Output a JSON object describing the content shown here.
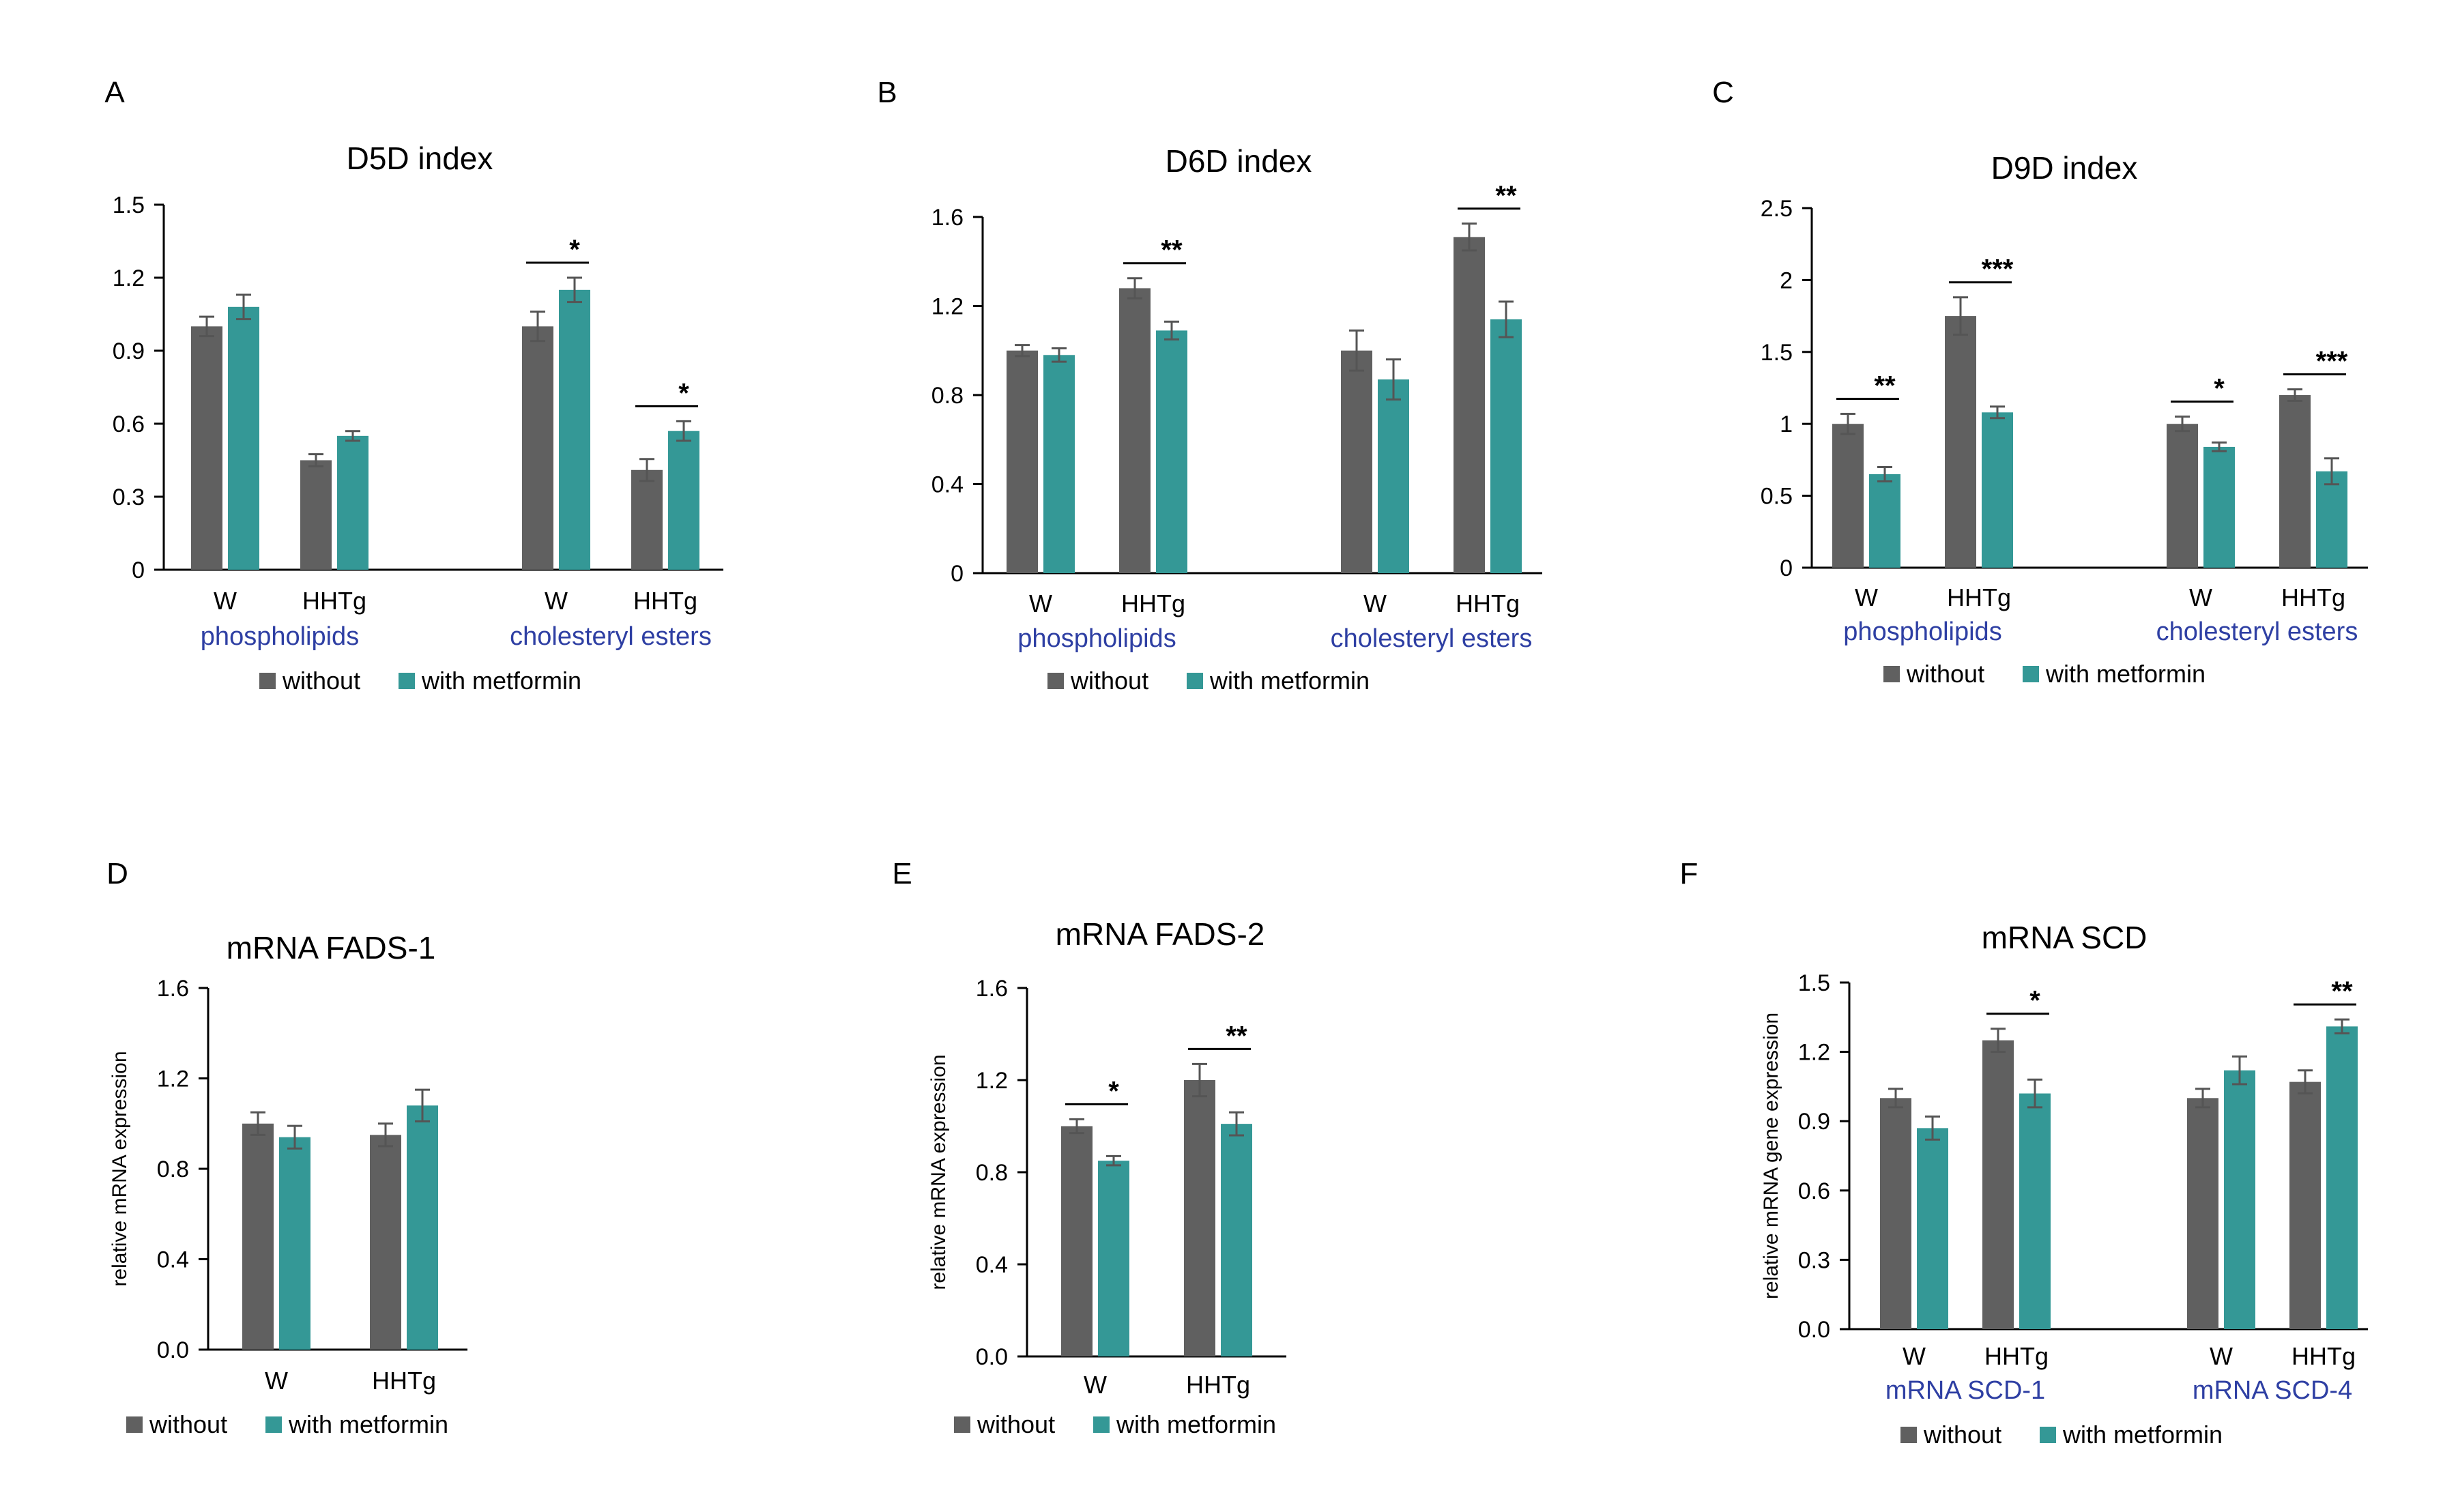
{
  "colors": {
    "without": "#606060",
    "with": "#349896",
    "axis": "#000000",
    "group_label": "#2e3fa3",
    "error": "#555555"
  },
  "legend": {
    "without": "without",
    "with": "with metformin"
  },
  "chart_data": [
    {
      "panel": "A",
      "type": "bar",
      "title": "D5D index",
      "ylabel": "",
      "yticks": [
        "0",
        "0.3",
        "0.6",
        "0.9",
        "1.2",
        "1.5"
      ],
      "ylim": [
        0,
        1.5
      ],
      "categories": [
        "W",
        "HHTg",
        "W",
        "HHTg"
      ],
      "groups": [
        {
          "label": "phospholipids",
          "span": [
            0,
            1
          ]
        },
        {
          "label": "cholesteryl esters",
          "span": [
            2,
            3
          ]
        }
      ],
      "series": [
        {
          "name": "without",
          "values": [
            1.0,
            0.45,
            1.0,
            0.41
          ],
          "errors": [
            0.04,
            0.025,
            0.06,
            0.045
          ]
        },
        {
          "name": "with metformin",
          "values": [
            1.08,
            0.55,
            1.15,
            0.57
          ],
          "errors": [
            0.05,
            0.02,
            0.05,
            0.04
          ]
        }
      ],
      "significance": [
        {
          "category": 2,
          "label": "*"
        },
        {
          "category": 3,
          "label": "*"
        }
      ]
    },
    {
      "panel": "B",
      "type": "bar",
      "title": "D6D index",
      "ylabel": "",
      "yticks": [
        "0",
        "0.4",
        "0.8",
        "1.2",
        "1.6"
      ],
      "ylim": [
        0,
        1.6
      ],
      "categories": [
        "W",
        "HHTg",
        "W",
        "HHTg"
      ],
      "groups": [
        {
          "label": "phospholipids",
          "span": [
            0,
            1
          ]
        },
        {
          "label": "cholesteryl esters",
          "span": [
            2,
            3
          ]
        }
      ],
      "series": [
        {
          "name": "without",
          "values": [
            1.0,
            1.28,
            1.0,
            1.51
          ],
          "errors": [
            0.025,
            0.045,
            0.09,
            0.06
          ]
        },
        {
          "name": "with metformin",
          "values": [
            0.98,
            1.09,
            0.87,
            1.14
          ],
          "errors": [
            0.03,
            0.04,
            0.09,
            0.08
          ]
        }
      ],
      "significance": [
        {
          "category": 1,
          "label": "**"
        },
        {
          "category": 3,
          "label": "**"
        }
      ]
    },
    {
      "panel": "C",
      "type": "bar",
      "title": "D9D index",
      "ylabel": "",
      "yticks": [
        "0",
        "0.5",
        "1",
        "1.5",
        "2",
        "2.5"
      ],
      "ylim": [
        0,
        2.5
      ],
      "categories": [
        "W",
        "HHTg",
        "W",
        "HHTg"
      ],
      "groups": [
        {
          "label": "phospholipids",
          "span": [
            0,
            1
          ]
        },
        {
          "label": "cholesteryl esters",
          "span": [
            2,
            3
          ]
        }
      ],
      "series": [
        {
          "name": "without",
          "values": [
            1.0,
            1.75,
            1.0,
            1.2
          ],
          "errors": [
            0.07,
            0.13,
            0.05,
            0.04
          ]
        },
        {
          "name": "with metformin",
          "values": [
            0.65,
            1.08,
            0.84,
            0.67
          ],
          "errors": [
            0.05,
            0.04,
            0.03,
            0.09
          ]
        }
      ],
      "significance": [
        {
          "category": 0,
          "label": "**"
        },
        {
          "category": 1,
          "label": "***"
        },
        {
          "category": 2,
          "label": "*"
        },
        {
          "category": 3,
          "label": "***"
        }
      ]
    },
    {
      "panel": "D",
      "type": "bar",
      "title": "mRNA FADS-1",
      "ylabel": "relative mRNA expression",
      "yticks": [
        "0.0",
        "0.4",
        "0.8",
        "1.2",
        "1.6"
      ],
      "ylim": [
        0,
        1.6
      ],
      "categories": [
        "W",
        "HHTg"
      ],
      "groups": [],
      "series": [
        {
          "name": "without",
          "values": [
            1.0,
            0.95
          ],
          "errors": [
            0.05,
            0.05
          ]
        },
        {
          "name": "with metformin",
          "values": [
            0.94,
            1.08
          ],
          "errors": [
            0.05,
            0.07
          ]
        }
      ],
      "significance": []
    },
    {
      "panel": "E",
      "type": "bar",
      "title": "mRNA FADS-2",
      "ylabel": "relative mRNA expression",
      "yticks": [
        "0.0",
        "0.4",
        "0.8",
        "1.2",
        "1.6"
      ],
      "ylim": [
        0,
        1.6
      ],
      "categories": [
        "W",
        "HHTg"
      ],
      "groups": [],
      "series": [
        {
          "name": "without",
          "values": [
            1.0,
            1.2
          ],
          "errors": [
            0.03,
            0.07
          ]
        },
        {
          "name": "with metformin",
          "values": [
            0.85,
            1.01
          ],
          "errors": [
            0.02,
            0.05
          ]
        }
      ],
      "significance": [
        {
          "category": 0,
          "label": "*"
        },
        {
          "category": 1,
          "label": "**"
        }
      ]
    },
    {
      "panel": "F",
      "type": "bar",
      "title": "mRNA SCD",
      "ylabel": "relative mRNA gene expression",
      "yticks": [
        "0.0",
        "0.3",
        "0.6",
        "0.9",
        "1.2",
        "1.5"
      ],
      "ylim": [
        0,
        1.5
      ],
      "categories": [
        "W",
        "HHTg",
        "W",
        "HHTg"
      ],
      "groups": [
        {
          "label": "mRNA SCD-1",
          "span": [
            0,
            1
          ]
        },
        {
          "label": "mRNA SCD-4",
          "span": [
            2,
            3
          ]
        }
      ],
      "series": [
        {
          "name": "without",
          "values": [
            1.0,
            1.25,
            1.0,
            1.07
          ],
          "errors": [
            0.04,
            0.05,
            0.04,
            0.05
          ]
        },
        {
          "name": "with metformin",
          "values": [
            0.87,
            1.02,
            1.12,
            1.31
          ],
          "errors": [
            0.05,
            0.06,
            0.06,
            0.03
          ]
        }
      ],
      "significance": [
        {
          "category": 1,
          "label": "*"
        },
        {
          "category": 3,
          "label": "**"
        }
      ]
    }
  ]
}
